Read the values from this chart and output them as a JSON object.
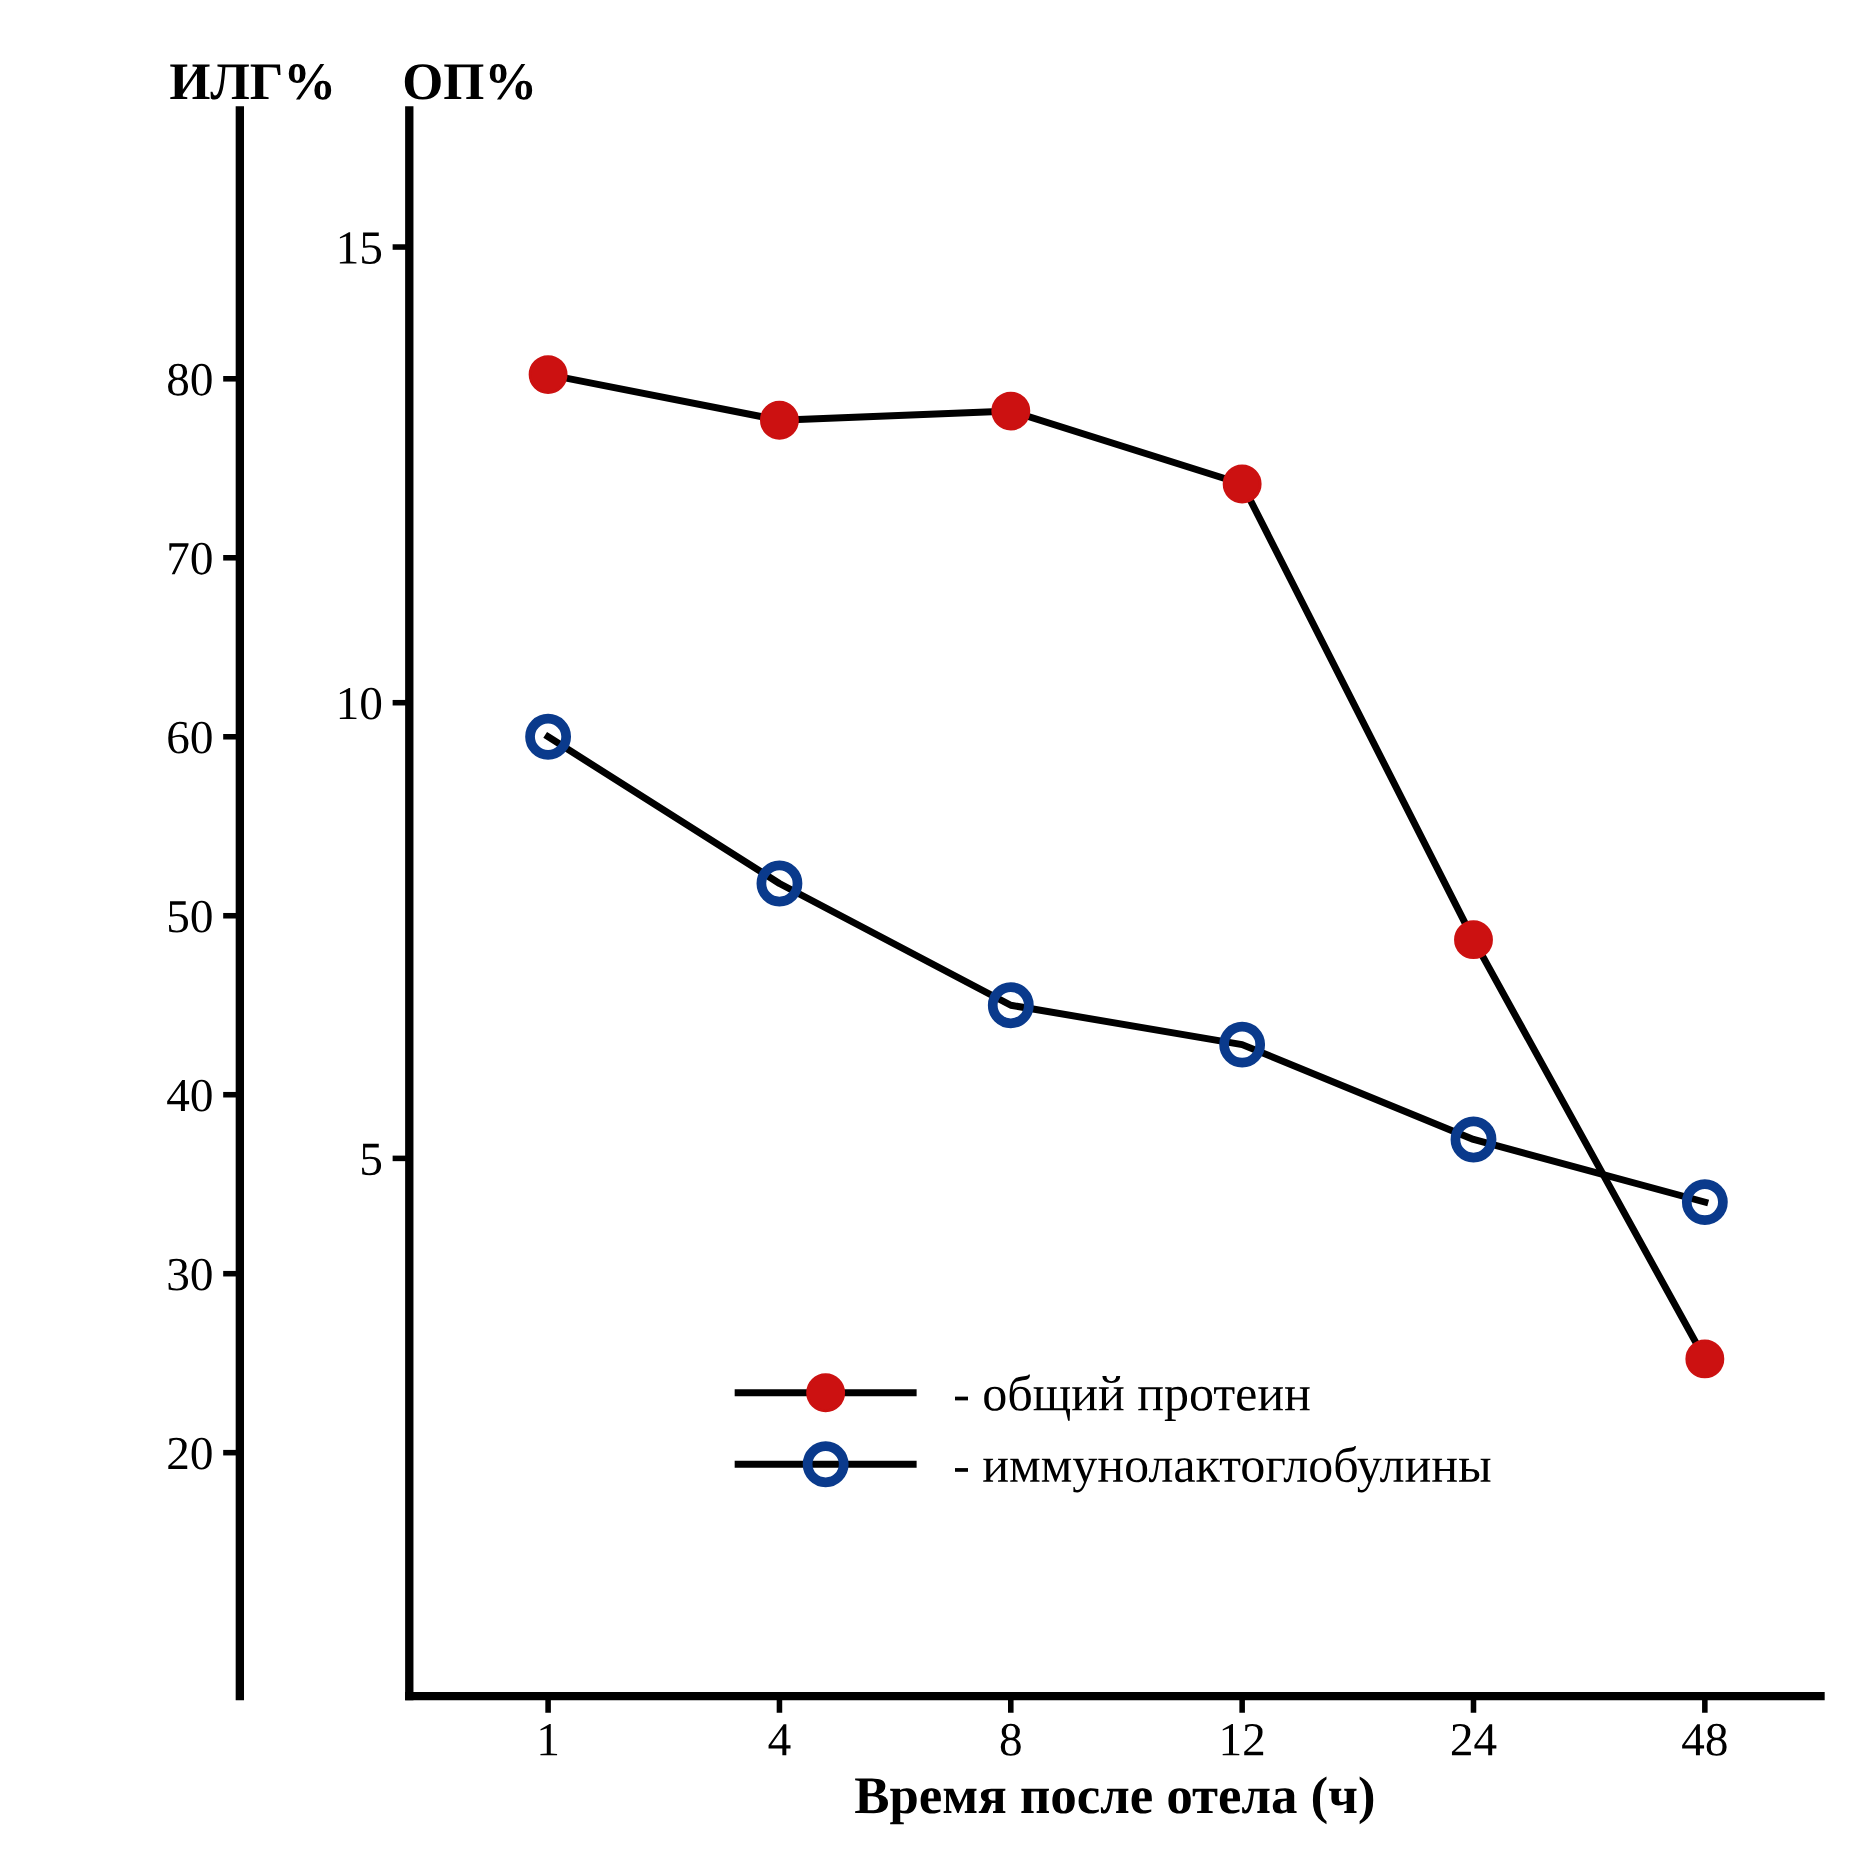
{
  "chart_data": {
    "type": "line",
    "xlabel": "Время после отела (ч)",
    "ylabel": "ОП%",
    "y2label": "ИЛГ%",
    "categories": [
      "1",
      "4",
      "8",
      "12",
      "24",
      "48"
    ],
    "ylim": [
      -0.9,
      16.5
    ],
    "yticks": [
      5,
      10,
      15
    ],
    "y2lim": [
      6.4,
      95
    ],
    "y2ticks": [
      20,
      30,
      40,
      50,
      60,
      70,
      80
    ],
    "marker": "circle",
    "line_style": "solid",
    "grid": false,
    "legend": "bottom",
    "series": [
      {
        "name": "- общий протеин",
        "color": "#cc1111",
        "values": [
          13.6,
          13.1,
          13.2,
          12.4,
          7.4,
          2.8
        ]
      },
      {
        "name": "- иммунолактоглобулины",
        "color": "#0a3a8c",
        "axis": "y2",
        "values": [
          60,
          51.8,
          45,
          42.8,
          37.5,
          34
        ]
      }
    ]
  }
}
